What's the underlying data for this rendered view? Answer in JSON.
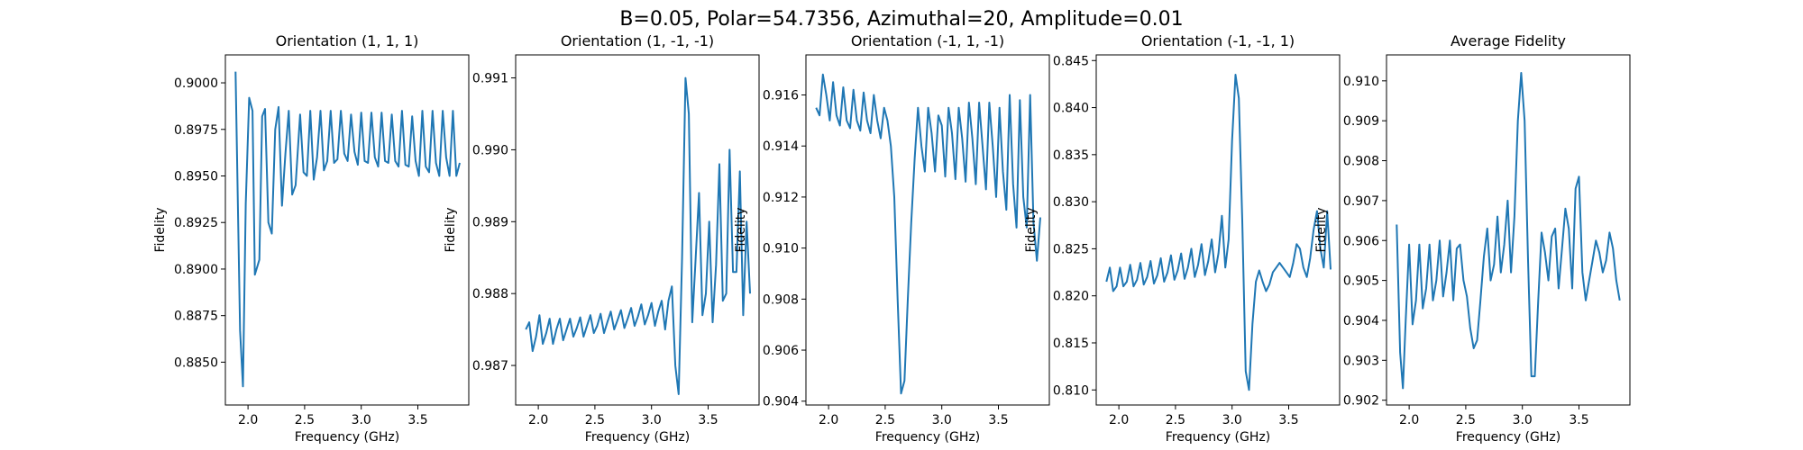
{
  "figure": {
    "suptitle": "B=0.05, Polar=54.7356, Azimuthal=20, Amplitude=0.01"
  },
  "chart_data": [
    {
      "type": "line",
      "title": "Orientation (1, 1, 1)",
      "xlabel": "Frequency (GHz)",
      "ylabel": "Fidelity",
      "xlim": [
        1.8,
        3.95
      ],
      "ylim": [
        0.8827,
        0.9015
      ],
      "xticks": [
        {
          "v": 2.0,
          "label": "2.0"
        },
        {
          "v": 2.5,
          "label": "2.5"
        },
        {
          "v": 3.0,
          "label": "3.0"
        },
        {
          "v": 3.5,
          "label": "3.5"
        }
      ],
      "yticks": [
        {
          "v": 0.885,
          "label": "0.8850"
        },
        {
          "v": 0.8875,
          "label": "0.8875"
        },
        {
          "v": 0.89,
          "label": "0.8900"
        },
        {
          "v": 0.8925,
          "label": "0.8925"
        },
        {
          "v": 0.895,
          "label": "0.8950"
        },
        {
          "v": 0.8975,
          "label": "0.8975"
        },
        {
          "v": 0.9,
          "label": "0.9000"
        }
      ],
      "series": [
        {
          "name": "fidelity",
          "x": [
            1.89,
            1.93,
            1.955,
            1.98,
            2.01,
            2.04,
            2.06,
            2.1,
            2.125,
            2.15,
            2.18,
            2.21,
            2.24,
            2.27,
            2.3,
            2.33,
            2.36,
            2.39,
            2.42,
            2.46,
            2.49,
            2.52,
            2.55,
            2.58,
            2.61,
            2.64,
            2.67,
            2.7,
            2.73,
            2.76,
            2.79,
            2.82,
            2.85,
            2.88,
            2.91,
            2.94,
            2.97,
            3.0,
            3.03,
            3.06,
            3.09,
            3.12,
            3.15,
            3.18,
            3.21,
            3.24,
            3.27,
            3.3,
            3.33,
            3.36,
            3.39,
            3.42,
            3.45,
            3.48,
            3.51,
            3.54,
            3.57,
            3.6,
            3.63,
            3.66,
            3.69,
            3.72,
            3.75,
            3.78,
            3.81,
            3.84,
            3.87
          ],
          "y": [
            0.9006,
            0.8867,
            0.8837,
            0.8935,
            0.8992,
            0.8985,
            0.8897,
            0.8905,
            0.8982,
            0.8986,
            0.8925,
            0.8919,
            0.8975,
            0.8987,
            0.8934,
            0.8962,
            0.8985,
            0.894,
            0.8945,
            0.8983,
            0.8952,
            0.895,
            0.8985,
            0.8948,
            0.896,
            0.8985,
            0.8953,
            0.8958,
            0.8985,
            0.8957,
            0.8959,
            0.8985,
            0.8962,
            0.8958,
            0.8983,
            0.8963,
            0.8956,
            0.8984,
            0.8958,
            0.8957,
            0.8984,
            0.896,
            0.8955,
            0.8984,
            0.8958,
            0.8957,
            0.8983,
            0.8958,
            0.8955,
            0.8985,
            0.8956,
            0.8955,
            0.8982,
            0.8958,
            0.895,
            0.8985,
            0.8955,
            0.8952,
            0.8985,
            0.8957,
            0.895,
            0.8985,
            0.896,
            0.895,
            0.8985,
            0.895,
            0.8957
          ]
        }
      ]
    },
    {
      "type": "line",
      "title": "Orientation (1, -1, -1)",
      "xlabel": "Frequency (GHz)",
      "ylabel": "Fidelity",
      "xlim": [
        1.8,
        3.95
      ],
      "ylim": [
        0.98645,
        0.99132
      ],
      "xticks": [
        {
          "v": 2.0,
          "label": "2.0"
        },
        {
          "v": 2.5,
          "label": "2.5"
        },
        {
          "v": 3.0,
          "label": "3.0"
        },
        {
          "v": 3.5,
          "label": "3.5"
        }
      ],
      "yticks": [
        {
          "v": 0.987,
          "label": "0.987"
        },
        {
          "v": 0.988,
          "label": "0.988"
        },
        {
          "v": 0.989,
          "label": "0.989"
        },
        {
          "v": 0.99,
          "label": "0.990"
        },
        {
          "v": 0.991,
          "label": "0.991"
        }
      ],
      "series": [
        {
          "name": "fidelity",
          "x": [
            1.89,
            1.92,
            1.95,
            1.98,
            2.01,
            2.04,
            2.07,
            2.1,
            2.13,
            2.16,
            2.19,
            2.22,
            2.25,
            2.28,
            2.31,
            2.34,
            2.37,
            2.4,
            2.43,
            2.46,
            2.49,
            2.52,
            2.55,
            2.58,
            2.61,
            2.64,
            2.67,
            2.7,
            2.73,
            2.76,
            2.79,
            2.82,
            2.85,
            2.88,
            2.91,
            2.94,
            2.97,
            3.0,
            3.03,
            3.06,
            3.09,
            3.12,
            3.15,
            3.18,
            3.21,
            3.24,
            3.27,
            3.3,
            3.33,
            3.36,
            3.39,
            3.42,
            3.45,
            3.48,
            3.51,
            3.54,
            3.57,
            3.6,
            3.63,
            3.66,
            3.69,
            3.72,
            3.75,
            3.78,
            3.81,
            3.84,
            3.87
          ],
          "y": [
            0.9875,
            0.9876,
            0.9872,
            0.9874,
            0.9877,
            0.9873,
            0.98745,
            0.98765,
            0.9873,
            0.9875,
            0.98765,
            0.98735,
            0.9875,
            0.98765,
            0.9874,
            0.98752,
            0.98767,
            0.9874,
            0.98755,
            0.9877,
            0.98745,
            0.98755,
            0.98772,
            0.98745,
            0.9876,
            0.98775,
            0.9875,
            0.98763,
            0.98777,
            0.98752,
            0.98765,
            0.9878,
            0.98755,
            0.98768,
            0.98785,
            0.98757,
            0.9877,
            0.98787,
            0.98755,
            0.98775,
            0.9879,
            0.9875,
            0.9879,
            0.9881,
            0.987,
            0.9866,
            0.9885,
            0.991,
            0.9905,
            0.9876,
            0.9885,
            0.9894,
            0.9877,
            0.988,
            0.989,
            0.9876,
            0.9884,
            0.9898,
            0.9879,
            0.988,
            0.99,
            0.9883,
            0.9883,
            0.9897,
            0.9877,
            0.989,
            0.988
          ]
        }
      ]
    },
    {
      "type": "line",
      "title": "Orientation (-1, 1, -1)",
      "xlabel": "Frequency (GHz)",
      "ylabel": "Fidelity",
      "xlim": [
        1.8,
        3.95
      ],
      "ylim": [
        0.90385,
        0.91757
      ],
      "xticks": [
        {
          "v": 2.0,
          "label": "2.0"
        },
        {
          "v": 2.5,
          "label": "2.5"
        },
        {
          "v": 3.0,
          "label": "3.0"
        },
        {
          "v": 3.5,
          "label": "3.5"
        }
      ],
      "yticks": [
        {
          "v": 0.904,
          "label": "0.904"
        },
        {
          "v": 0.906,
          "label": "0.906"
        },
        {
          "v": 0.908,
          "label": "0.908"
        },
        {
          "v": 0.91,
          "label": "0.910"
        },
        {
          "v": 0.912,
          "label": "0.912"
        },
        {
          "v": 0.914,
          "label": "0.914"
        },
        {
          "v": 0.916,
          "label": "0.916"
        }
      ],
      "series": [
        {
          "name": "fidelity",
          "x": [
            1.89,
            1.92,
            1.95,
            1.98,
            2.01,
            2.04,
            2.07,
            2.1,
            2.13,
            2.16,
            2.19,
            2.22,
            2.25,
            2.28,
            2.31,
            2.34,
            2.37,
            2.4,
            2.43,
            2.46,
            2.49,
            2.52,
            2.55,
            2.58,
            2.61,
            2.64,
            2.67,
            2.7,
            2.73,
            2.76,
            2.79,
            2.82,
            2.85,
            2.88,
            2.91,
            2.94,
            2.97,
            3.0,
            3.03,
            3.06,
            3.09,
            3.12,
            3.15,
            3.18,
            3.21,
            3.24,
            3.27,
            3.3,
            3.33,
            3.36,
            3.39,
            3.42,
            3.45,
            3.48,
            3.51,
            3.54,
            3.57,
            3.6,
            3.63,
            3.66,
            3.69,
            3.72,
            3.75,
            3.78,
            3.81,
            3.84,
            3.87
          ],
          "y": [
            0.9155,
            0.9152,
            0.9168,
            0.916,
            0.915,
            0.9165,
            0.9152,
            0.9148,
            0.9163,
            0.915,
            0.9147,
            0.9162,
            0.915,
            0.9146,
            0.9161,
            0.915,
            0.9145,
            0.916,
            0.915,
            0.9143,
            0.9155,
            0.915,
            0.914,
            0.912,
            0.908,
            0.9043,
            0.9048,
            0.908,
            0.911,
            0.9135,
            0.9155,
            0.914,
            0.913,
            0.9155,
            0.9145,
            0.913,
            0.9152,
            0.9148,
            0.9128,
            0.9155,
            0.9145,
            0.9127,
            0.9155,
            0.9143,
            0.9126,
            0.9157,
            0.9143,
            0.9125,
            0.9157,
            0.914,
            0.9123,
            0.9157,
            0.914,
            0.912,
            0.9155,
            0.913,
            0.9115,
            0.916,
            0.9125,
            0.9108,
            0.9158,
            0.912,
            0.9108,
            0.916,
            0.911,
            0.9095,
            0.9112
          ]
        }
      ]
    },
    {
      "type": "line",
      "title": "Orientation (-1, -1, 1)",
      "xlabel": "Frequency (GHz)",
      "ylabel": "Fidelity",
      "xlim": [
        1.8,
        3.95
      ],
      "ylim": [
        0.8084,
        0.8456
      ],
      "xticks": [
        {
          "v": 2.0,
          "label": "2.0"
        },
        {
          "v": 2.5,
          "label": "2.5"
        },
        {
          "v": 3.0,
          "label": "3.0"
        },
        {
          "v": 3.5,
          "label": "3.5"
        }
      ],
      "yticks": [
        {
          "v": 0.81,
          "label": "0.810"
        },
        {
          "v": 0.815,
          "label": "0.815"
        },
        {
          "v": 0.82,
          "label": "0.820"
        },
        {
          "v": 0.825,
          "label": "0.825"
        },
        {
          "v": 0.83,
          "label": "0.830"
        },
        {
          "v": 0.835,
          "label": "0.835"
        },
        {
          "v": 0.84,
          "label": "0.840"
        },
        {
          "v": 0.845,
          "label": "0.845"
        }
      ],
      "series": [
        {
          "name": "fidelity",
          "x": [
            1.89,
            1.92,
            1.95,
            1.98,
            2.01,
            2.04,
            2.07,
            2.1,
            2.13,
            2.16,
            2.19,
            2.22,
            2.25,
            2.28,
            2.31,
            2.34,
            2.37,
            2.4,
            2.43,
            2.46,
            2.49,
            2.52,
            2.55,
            2.58,
            2.61,
            2.64,
            2.67,
            2.7,
            2.73,
            2.76,
            2.79,
            2.82,
            2.85,
            2.88,
            2.91,
            2.94,
            2.97,
            3.0,
            3.03,
            3.06,
            3.09,
            3.12,
            3.15,
            3.18,
            3.21,
            3.24,
            3.27,
            3.3,
            3.33,
            3.36,
            3.39,
            3.42,
            3.45,
            3.48,
            3.51,
            3.54,
            3.57,
            3.6,
            3.63,
            3.66,
            3.69,
            3.72,
            3.75,
            3.78,
            3.81,
            3.84,
            3.87
          ],
          "y": [
            0.8215,
            0.823,
            0.8205,
            0.821,
            0.823,
            0.821,
            0.8215,
            0.8233,
            0.821,
            0.8217,
            0.8235,
            0.8212,
            0.822,
            0.8237,
            0.8213,
            0.8222,
            0.824,
            0.8215,
            0.8225,
            0.8243,
            0.8217,
            0.8227,
            0.8245,
            0.8218,
            0.823,
            0.825,
            0.822,
            0.8233,
            0.8255,
            0.8222,
            0.8237,
            0.826,
            0.8225,
            0.8245,
            0.8285,
            0.823,
            0.826,
            0.8365,
            0.8435,
            0.841,
            0.828,
            0.812,
            0.81,
            0.817,
            0.8215,
            0.8227,
            0.8215,
            0.8205,
            0.8212,
            0.8225,
            0.823,
            0.8235,
            0.823,
            0.8225,
            0.822,
            0.8235,
            0.8255,
            0.825,
            0.823,
            0.822,
            0.824,
            0.827,
            0.829,
            0.825,
            0.823,
            0.829,
            0.8228
          ]
        }
      ]
    },
    {
      "type": "line",
      "title": "Average Fidelity",
      "xlabel": "Frequency (GHz)",
      "ylabel": "Fidelity",
      "xlim": [
        1.8,
        3.95
      ],
      "ylim": [
        0.90188,
        0.91065
      ],
      "xticks": [
        {
          "v": 2.0,
          "label": "2.0"
        },
        {
          "v": 2.5,
          "label": "2.5"
        },
        {
          "v": 3.0,
          "label": "3.0"
        },
        {
          "v": 3.5,
          "label": "3.5"
        }
      ],
      "yticks": [
        {
          "v": 0.902,
          "label": "0.902"
        },
        {
          "v": 0.903,
          "label": "0.903"
        },
        {
          "v": 0.904,
          "label": "0.904"
        },
        {
          "v": 0.905,
          "label": "0.905"
        },
        {
          "v": 0.906,
          "label": "0.906"
        },
        {
          "v": 0.907,
          "label": "0.907"
        },
        {
          "v": 0.908,
          "label": "0.908"
        },
        {
          "v": 0.909,
          "label": "0.909"
        },
        {
          "v": 0.91,
          "label": "0.910"
        }
      ],
      "series": [
        {
          "name": "fidelity",
          "x": [
            1.89,
            1.92,
            1.945,
            1.97,
            2.0,
            2.03,
            2.06,
            2.09,
            2.12,
            2.15,
            2.18,
            2.21,
            2.24,
            2.27,
            2.3,
            2.33,
            2.36,
            2.39,
            2.42,
            2.45,
            2.48,
            2.51,
            2.54,
            2.57,
            2.6,
            2.63,
            2.66,
            2.69,
            2.72,
            2.75,
            2.78,
            2.81,
            2.84,
            2.87,
            2.9,
            2.93,
            2.96,
            2.99,
            3.02,
            3.05,
            3.08,
            3.11,
            3.14,
            3.17,
            3.2,
            3.23,
            3.26,
            3.29,
            3.32,
            3.35,
            3.38,
            3.41,
            3.44,
            3.47,
            3.5,
            3.53,
            3.56,
            3.59,
            3.62,
            3.65,
            3.68,
            3.71,
            3.74,
            3.77,
            3.8,
            3.83,
            3.86
          ],
          "y": [
            0.9064,
            0.9032,
            0.9023,
            0.904,
            0.9059,
            0.9039,
            0.9045,
            0.9059,
            0.9043,
            0.9048,
            0.9059,
            0.9045,
            0.905,
            0.906,
            0.9046,
            0.9052,
            0.906,
            0.9045,
            0.9058,
            0.9059,
            0.905,
            0.9046,
            0.9038,
            0.9033,
            0.9035,
            0.9045,
            0.9056,
            0.9063,
            0.905,
            0.9054,
            0.9066,
            0.9052,
            0.9059,
            0.907,
            0.9052,
            0.9066,
            0.909,
            0.9102,
            0.909,
            0.9055,
            0.9026,
            0.9026,
            0.9045,
            0.9062,
            0.9057,
            0.905,
            0.9061,
            0.9063,
            0.9048,
            0.9058,
            0.9068,
            0.9063,
            0.9048,
            0.9073,
            0.9076,
            0.9052,
            0.9045,
            0.905,
            0.9055,
            0.906,
            0.9057,
            0.9052,
            0.9055,
            0.9062,
            0.9058,
            0.905,
            0.9045
          ]
        }
      ]
    }
  ]
}
